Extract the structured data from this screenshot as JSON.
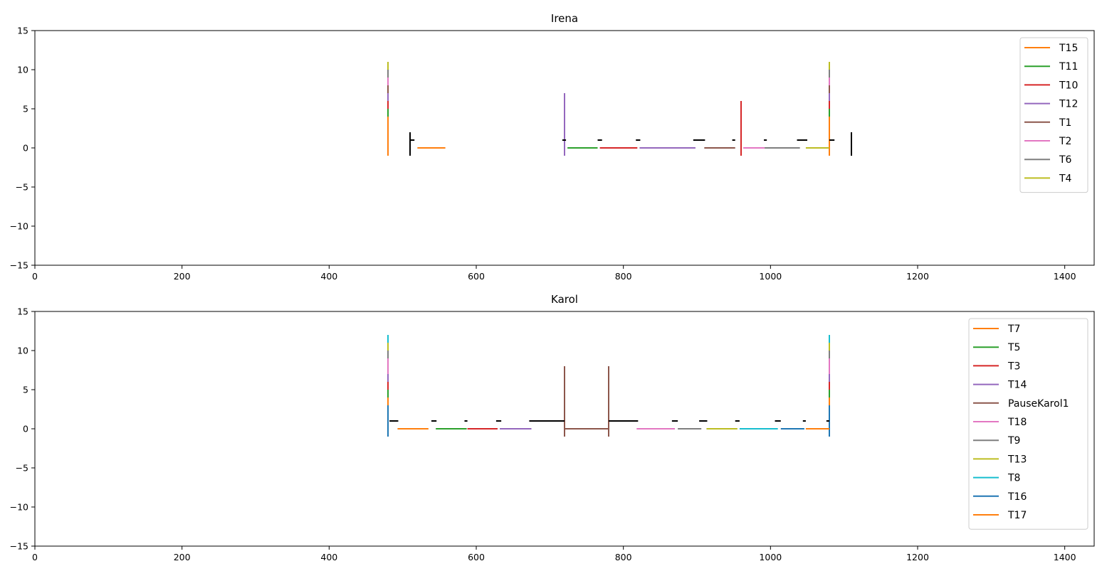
{
  "chart_data": [
    {
      "type": "line",
      "title": "Irena",
      "xlabel": "",
      "ylabel": "",
      "xlim": [
        0,
        1440
      ],
      "ylim": [
        -15,
        15
      ],
      "x_ticks": [
        0,
        200,
        400,
        600,
        800,
        1000,
        1200,
        1400
      ],
      "y_ticks": [
        -15,
        -10,
        -5,
        0,
        5,
        10,
        15
      ],
      "x_tick_labels": [
        "0",
        "200",
        "400",
        "600",
        "800",
        "1000",
        "1200",
        "1400"
      ],
      "y_tick_labels": [
        "−15",
        "−10",
        "−5",
        "0",
        "5",
        "10",
        "15"
      ],
      "grid": false,
      "legend_position": "top-right",
      "series": [
        {
          "name": "T15",
          "color": "#ff7f0e",
          "segments": [
            {
              "x": [
                480,
                480
              ],
              "y": [
                -1,
                4
              ]
            },
            {
              "x": [
                520,
                558
              ],
              "y": [
                0,
                0
              ]
            },
            {
              "x": [
                1080,
                1080
              ],
              "y": [
                -1,
                4
              ]
            }
          ]
        },
        {
          "name": "T11",
          "color": "#2ca02c",
          "segments": [
            {
              "x": [
                480,
                480
              ],
              "y": [
                4,
                5
              ]
            },
            {
              "x": [
                724,
                765
              ],
              "y": [
                0,
                0
              ]
            },
            {
              "x": [
                1080,
                1080
              ],
              "y": [
                4,
                5
              ]
            }
          ]
        },
        {
          "name": "T10",
          "color": "#d62728",
          "segments": [
            {
              "x": [
                480,
                480
              ],
              "y": [
                5,
                6
              ]
            },
            {
              "x": [
                768,
                819
              ],
              "y": [
                0,
                0
              ]
            },
            {
              "x": [
                960,
                960
              ],
              "y": [
                -1,
                6
              ]
            },
            {
              "x": [
                1080,
                1080
              ],
              "y": [
                5,
                6
              ]
            }
          ]
        },
        {
          "name": "T12",
          "color": "#9467bd",
          "segments": [
            {
              "x": [
                480,
                480
              ],
              "y": [
                6,
                7
              ]
            },
            {
              "x": [
                720,
                720
              ],
              "y": [
                -1,
                7
              ]
            },
            {
              "x": [
                822,
                898
              ],
              "y": [
                0,
                0
              ]
            },
            {
              "x": [
                1080,
                1080
              ],
              "y": [
                6,
                7
              ]
            }
          ]
        },
        {
          "name": "T1",
          "color": "#8c564b",
          "segments": [
            {
              "x": [
                480,
                480
              ],
              "y": [
                7,
                8
              ]
            },
            {
              "x": [
                910,
                952
              ],
              "y": [
                0,
                0
              ]
            },
            {
              "x": [
                1080,
                1080
              ],
              "y": [
                7,
                8
              ]
            }
          ]
        },
        {
          "name": "T2",
          "color": "#e377c2",
          "segments": [
            {
              "x": [
                480,
                480
              ],
              "y": [
                8,
                9
              ]
            },
            {
              "x": [
                963,
                992
              ],
              "y": [
                0,
                0
              ]
            },
            {
              "x": [
                1080,
                1080
              ],
              "y": [
                8,
                9
              ]
            }
          ]
        },
        {
          "name": "T6",
          "color": "#7f7f7f",
          "segments": [
            {
              "x": [
                480,
                480
              ],
              "y": [
                9,
                10
              ]
            },
            {
              "x": [
                992,
                1040
              ],
              "y": [
                0,
                0
              ]
            },
            {
              "x": [
                1080,
                1080
              ],
              "y": [
                9,
                10
              ]
            }
          ]
        },
        {
          "name": "T4",
          "color": "#bcbd22",
          "segments": [
            {
              "x": [
                480,
                480
              ],
              "y": [
                10,
                11
              ]
            },
            {
              "x": [
                1048,
                1080
              ],
              "y": [
                0,
                0
              ]
            },
            {
              "x": [
                1080,
                1080
              ],
              "y": [
                10,
                11
              ]
            }
          ]
        },
        {
          "color": "#000000",
          "segments": [
            {
              "x": [
                510,
                510
              ],
              "y": [
                -1,
                2
              ]
            },
            {
              "x": [
                510,
                516
              ],
              "y": [
                1,
                1
              ]
            },
            {
              "x": [
                717,
                722
              ],
              "y": [
                1,
                1
              ]
            },
            {
              "x": [
                765,
                771
              ],
              "y": [
                1,
                1
              ]
            },
            {
              "x": [
                817,
                823
              ],
              "y": [
                1,
                1
              ]
            },
            {
              "x": [
                895,
                911
              ],
              "y": [
                1,
                1
              ]
            },
            {
              "x": [
                948,
                952
              ],
              "y": [
                1,
                1
              ]
            },
            {
              "x": [
                991,
                995
              ],
              "y": [
                1,
                1
              ]
            },
            {
              "x": [
                1036,
                1050
              ],
              "y": [
                1,
                1
              ]
            },
            {
              "x": [
                1080,
                1087
              ],
              "y": [
                1,
                1
              ]
            },
            {
              "x": [
                1110,
                1110
              ],
              "y": [
                -1,
                2
              ]
            }
          ]
        }
      ]
    },
    {
      "type": "line",
      "title": "Karol",
      "xlabel": "",
      "ylabel": "",
      "xlim": [
        0,
        1440
      ],
      "ylim": [
        -15,
        15
      ],
      "x_ticks": [
        0,
        200,
        400,
        600,
        800,
        1000,
        1200,
        1400
      ],
      "y_ticks": [
        -15,
        -10,
        -5,
        0,
        5,
        10,
        15
      ],
      "x_tick_labels": [
        "0",
        "200",
        "400",
        "600",
        "800",
        "1000",
        "1200",
        "1400"
      ],
      "y_tick_labels": [
        "−15",
        "−10",
        "−5",
        "0",
        "5",
        "10",
        "15"
      ],
      "grid": false,
      "legend_position": "top-right",
      "series": [
        {
          "name": "T7",
          "color": "#ff7f0e",
          "segments": [
            {
              "x": [
                480,
                480
              ],
              "y": [
                3,
                4
              ]
            },
            {
              "x": [
                493,
                535
              ],
              "y": [
                0,
                0
              ]
            },
            {
              "x": [
                1080,
                1080
              ],
              "y": [
                3,
                4
              ]
            }
          ]
        },
        {
          "name": "T5",
          "color": "#2ca02c",
          "segments": [
            {
              "x": [
                480,
                480
              ],
              "y": [
                4,
                5
              ]
            },
            {
              "x": [
                545,
                587
              ],
              "y": [
                0,
                0
              ]
            },
            {
              "x": [
                1080,
                1080
              ],
              "y": [
                4,
                5
              ]
            }
          ]
        },
        {
          "name": "T3",
          "color": "#d62728",
          "segments": [
            {
              "x": [
                480,
                480
              ],
              "y": [
                5,
                6
              ]
            },
            {
              "x": [
                588,
                629
              ],
              "y": [
                0,
                0
              ]
            },
            {
              "x": [
                1080,
                1080
              ],
              "y": [
                5,
                6
              ]
            }
          ]
        },
        {
          "name": "T14",
          "color": "#9467bd",
          "segments": [
            {
              "x": [
                480,
                480
              ],
              "y": [
                6,
                7
              ]
            },
            {
              "x": [
                632,
                675
              ],
              "y": [
                0,
                0
              ]
            },
            {
              "x": [
                1080,
                1080
              ],
              "y": [
                6,
                7
              ]
            }
          ]
        },
        {
          "name": "PauseKarol1",
          "color": "#8c564b",
          "segments": [
            {
              "x": [
                720,
                720
              ],
              "y": [
                -1,
                8
              ]
            },
            {
              "x": [
                720,
                780
              ],
              "y": [
                0,
                0
              ]
            },
            {
              "x": [
                780,
                780
              ],
              "y": [
                -1,
                8
              ]
            }
          ]
        },
        {
          "name": "T18",
          "color": "#e377c2",
          "segments": [
            {
              "x": [
                480,
                480
              ],
              "y": [
                7,
                9
              ]
            },
            {
              "x": [
                818,
                870
              ],
              "y": [
                0,
                0
              ]
            },
            {
              "x": [
                1080,
                1080
              ],
              "y": [
                7,
                9
              ]
            }
          ]
        },
        {
          "name": "T9",
          "color": "#7f7f7f",
          "segments": [
            {
              "x": [
                480,
                480
              ],
              "y": [
                9,
                10
              ]
            },
            {
              "x": [
                874,
                906
              ],
              "y": [
                0,
                0
              ]
            },
            {
              "x": [
                1080,
                1080
              ],
              "y": [
                9,
                10
              ]
            }
          ]
        },
        {
          "name": "T13",
          "color": "#bcbd22",
          "segments": [
            {
              "x": [
                480,
                480
              ],
              "y": [
                10,
                11
              ]
            },
            {
              "x": [
                913,
                955
              ],
              "y": [
                0,
                0
              ]
            },
            {
              "x": [
                1080,
                1080
              ],
              "y": [
                10,
                11
              ]
            }
          ]
        },
        {
          "name": "T8",
          "color": "#17becf",
          "segments": [
            {
              "x": [
                480,
                480
              ],
              "y": [
                11,
                12
              ]
            },
            {
              "x": [
                958,
                1010
              ],
              "y": [
                0,
                0
              ]
            },
            {
              "x": [
                1080,
                1080
              ],
              "y": [
                11,
                12
              ]
            }
          ]
        },
        {
          "name": "T16",
          "color": "#1f77b4",
          "segments": [
            {
              "x": [
                480,
                480
              ],
              "y": [
                -1,
                3
              ]
            },
            {
              "x": [
                1014,
                1046
              ],
              "y": [
                0,
                0
              ]
            },
            {
              "x": [
                1080,
                1080
              ],
              "y": [
                -1,
                3
              ]
            }
          ]
        },
        {
          "name": "T17",
          "color": "#ff7f0e",
          "segments": [
            {
              "x": [
                1048,
                1080
              ],
              "y": [
                0,
                0
              ]
            }
          ]
        },
        {
          "color": "#000000",
          "segments": [
            {
              "x": [
                482,
                494
              ],
              "y": [
                1,
                1
              ]
            },
            {
              "x": [
                539,
                546
              ],
              "y": [
                1,
                1
              ]
            },
            {
              "x": [
                584,
                588
              ],
              "y": [
                1,
                1
              ]
            },
            {
              "x": [
                627,
                634
              ],
              "y": [
                1,
                1
              ]
            },
            {
              "x": [
                672,
                720
              ],
              "y": [
                1,
                1
              ]
            },
            {
              "x": [
                780,
                820
              ],
              "y": [
                1,
                1
              ]
            },
            {
              "x": [
                866,
                874
              ],
              "y": [
                1,
                1
              ]
            },
            {
              "x": [
                903,
                914
              ],
              "y": [
                1,
                1
              ]
            },
            {
              "x": [
                952,
                958
              ],
              "y": [
                1,
                1
              ]
            },
            {
              "x": [
                1006,
                1014
              ],
              "y": [
                1,
                1
              ]
            },
            {
              "x": [
                1044,
                1048
              ],
              "y": [
                1,
                1
              ]
            },
            {
              "x": [
                1076,
                1080
              ],
              "y": [
                1,
                1
              ]
            }
          ]
        }
      ]
    }
  ]
}
